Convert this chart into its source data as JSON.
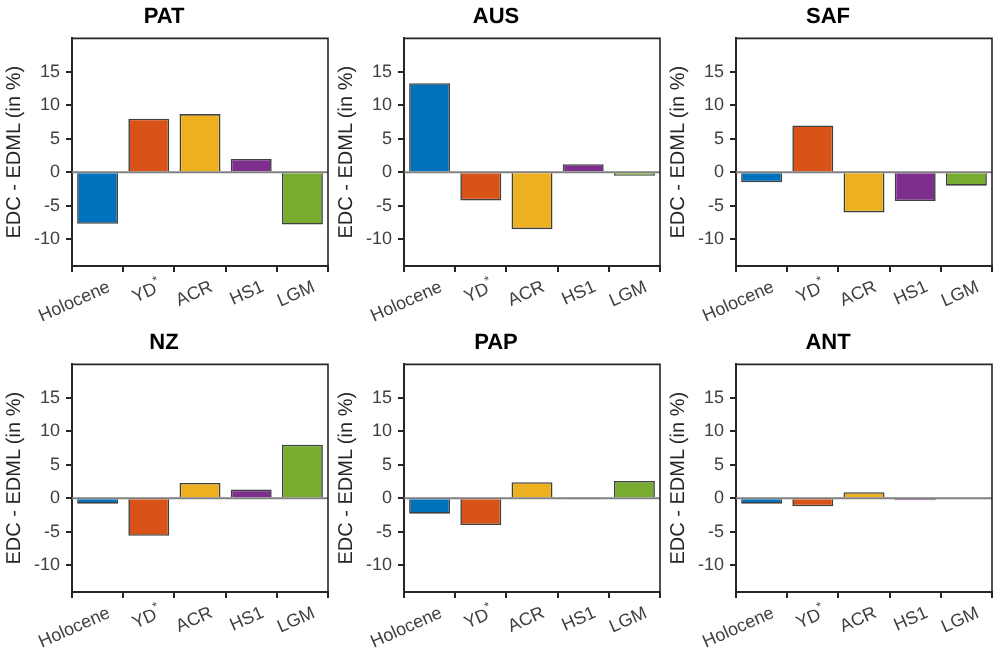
{
  "chart_data": [
    {
      "type": "bar",
      "title": "PAT",
      "ylabel": "EDC - EDML (in %)",
      "categories": [
        "Holocene",
        "YD$^{*}$",
        "ACR",
        "HS1",
        "LGM"
      ],
      "values": [
        -7.7,
        8,
        8.7,
        2,
        -7.8
      ],
      "colors": [
        "#0072bd",
        "#d95319",
        "#edb120",
        "#7e2f8e",
        "#77ac30"
      ],
      "ylim": [
        -14,
        20
      ],
      "yticks": [
        -10,
        -5,
        0,
        5,
        10,
        15
      ],
      "ref_lines": [
        {
          "axis": "y",
          "value": 0,
          "color": "#808080"
        }
      ],
      "grid": false,
      "legend": false
    },
    {
      "type": "bar",
      "title": "AUS",
      "ylabel": "EDC - EDML (in %)",
      "categories": [
        "Holocene",
        "YD$^{*}$",
        "ACR",
        "HS1",
        "LGM"
      ],
      "values": [
        13.3,
        -4.2,
        -8.5,
        1.2,
        -0.5
      ],
      "colors": [
        "#0072bd",
        "#d95319",
        "#edb120",
        "#7e2f8e",
        "#77ac30"
      ],
      "ylim": [
        -14,
        20
      ],
      "yticks": [
        -10,
        -5,
        0,
        5,
        10,
        15
      ],
      "ref_lines": [
        {
          "axis": "y",
          "value": 0,
          "color": "#808080"
        }
      ],
      "grid": false,
      "legend": false
    },
    {
      "type": "bar",
      "title": "SAF",
      "ylabel": "EDC - EDML (in %)",
      "categories": [
        "Holocene",
        "YD$^{*}$",
        "ACR",
        "HS1",
        "LGM"
      ],
      "values": [
        -1.5,
        7,
        -6,
        -4.3,
        -2
      ],
      "colors": [
        "#0072bd",
        "#d95319",
        "#edb120",
        "#7e2f8e",
        "#77ac30"
      ],
      "ylim": [
        -14,
        20
      ],
      "yticks": [
        -10,
        -5,
        0,
        5,
        10,
        15
      ],
      "ref_lines": [
        {
          "axis": "y",
          "value": 0,
          "color": "#808080"
        }
      ],
      "grid": false,
      "legend": false
    },
    {
      "type": "bar",
      "title": "NZ",
      "ylabel": "EDC - EDML (in %)",
      "categories": [
        "Holocene",
        "YD$^{*}$",
        "ACR",
        "HS1",
        "LGM"
      ],
      "values": [
        -0.8,
        -5.6,
        2.3,
        1.3,
        8
      ],
      "colors": [
        "#0072bd",
        "#d95319",
        "#edb120",
        "#7e2f8e",
        "#77ac30"
      ],
      "ylim": [
        -14,
        20
      ],
      "yticks": [
        -10,
        -5,
        0,
        5,
        10,
        15
      ],
      "ref_lines": [
        {
          "axis": "y",
          "value": 0,
          "color": "#808080"
        }
      ],
      "grid": false,
      "legend": false
    },
    {
      "type": "bar",
      "title": "PAP",
      "ylabel": "EDC - EDML (in %)",
      "categories": [
        "Holocene",
        "YD$^{*}$",
        "ACR",
        "HS1",
        "LGM"
      ],
      "values": [
        -2.3,
        -4,
        2.4,
        -0.2,
        2.6
      ],
      "colors": [
        "#0072bd",
        "#d95319",
        "#edb120",
        "#7e2f8e",
        "#77ac30"
      ],
      "ylim": [
        -14,
        20
      ],
      "yticks": [
        -10,
        -5,
        0,
        5,
        10,
        15
      ],
      "ref_lines": [
        {
          "axis": "y",
          "value": 0,
          "color": "#808080"
        }
      ],
      "grid": false,
      "legend": false
    },
    {
      "type": "bar",
      "title": "ANT",
      "ylabel": "EDC - EDML (in %)",
      "categories": [
        "Holocene",
        "YD$^{*}$",
        "ACR",
        "HS1",
        "LGM"
      ],
      "values": [
        -0.8,
        -1.2,
        0.9,
        -0.3,
        0
      ],
      "colors": [
        "#0072bd",
        "#d95319",
        "#edb120",
        "#7e2f8e",
        "#77ac30"
      ],
      "ylim": [
        -14,
        20
      ],
      "yticks": [
        -10,
        -5,
        0,
        5,
        10,
        15
      ],
      "ref_lines": [
        {
          "axis": "y",
          "value": 0,
          "color": "#808080"
        }
      ],
      "grid": false,
      "legend": false
    }
  ]
}
